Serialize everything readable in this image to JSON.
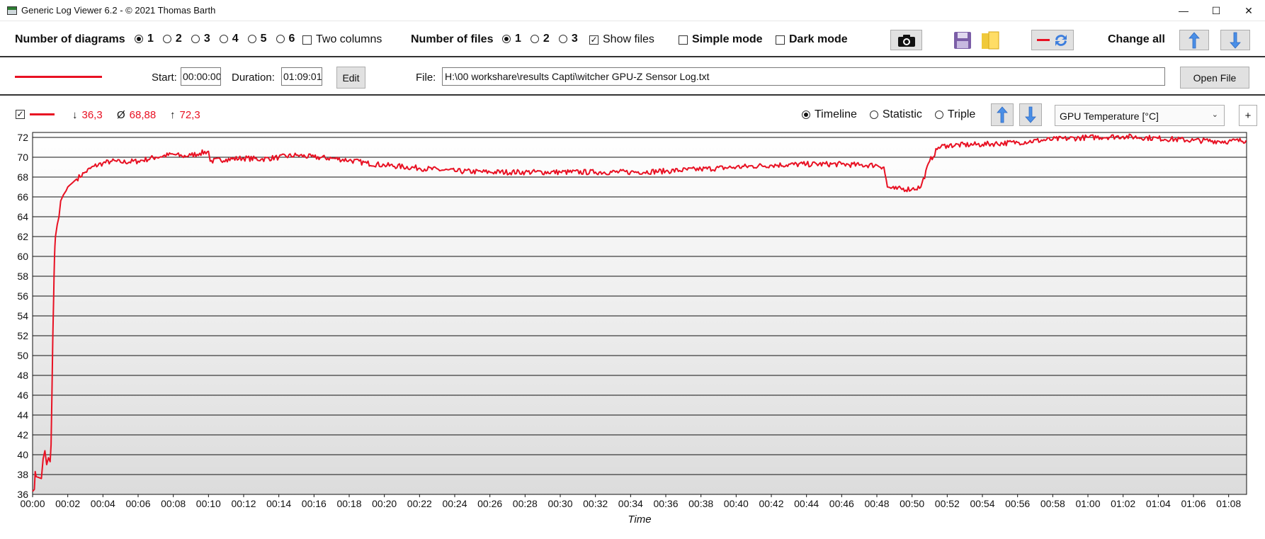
{
  "window": {
    "title": "Generic Log Viewer 6.2 - © 2021 Thomas Barth",
    "minimize": "—",
    "maximize": "☐",
    "close": "✕"
  },
  "toolbar": {
    "diagrams_label": "Number of diagrams",
    "diagram_options": [
      "1",
      "2",
      "3",
      "4",
      "5",
      "6"
    ],
    "diagram_selected": "1",
    "two_columns_label": "Two columns",
    "two_columns_checked": false,
    "files_label": "Number of files",
    "file_options": [
      "1",
      "2",
      "3"
    ],
    "file_selected": "1",
    "show_files_label": "Show files",
    "show_files_checked": true,
    "simple_mode_label": "Simple mode",
    "simple_mode_checked": false,
    "dark_mode_label": "Dark mode",
    "dark_mode_checked": false,
    "change_all_label": "Change all"
  },
  "filerow": {
    "line_color": "#e81123",
    "start_label": "Start:",
    "start_value": "00:00:00",
    "duration_label": "Duration:",
    "duration_value": "01:09:01",
    "edit_label": "Edit",
    "file_label": "File:",
    "file_path": "H:\\00 workshare\\results Capti\\witcher GPU-Z Sensor Log.txt",
    "open_file_label": "Open File"
  },
  "diagram": {
    "visible_checked": true,
    "min_symbol": "↓",
    "min_value": "36,3",
    "avg_symbol": "Ø",
    "avg_value": "68,88",
    "max_symbol": "↑",
    "max_value": "72,3",
    "view_options": [
      "Timeline",
      "Statistic",
      "Triple"
    ],
    "view_selected": "Timeline",
    "metric_selected": "GPU Temperature [°C]",
    "add_label": "+"
  },
  "chart_data": {
    "type": "line",
    "title": "",
    "xlabel": "Time",
    "ylabel": "",
    "ylim": [
      36,
      72.5
    ],
    "xlim_minutes": [
      0,
      69.02
    ],
    "y_ticks": [
      "36",
      "38",
      "40",
      "42",
      "44",
      "46",
      "48",
      "50",
      "52",
      "54",
      "56",
      "58",
      "60",
      "62",
      "64",
      "66",
      "68",
      "70",
      "72"
    ],
    "x_ticks": [
      "00:00",
      "00:02",
      "00:04",
      "00:06",
      "00:08",
      "00:10",
      "00:12",
      "00:14",
      "00:16",
      "00:18",
      "00:20",
      "00:22",
      "00:24",
      "00:26",
      "00:28",
      "00:30",
      "00:32",
      "00:34",
      "00:36",
      "00:38",
      "00:40",
      "00:42",
      "00:44",
      "00:46",
      "00:48",
      "00:50",
      "00:52",
      "00:54",
      "00:56",
      "00:58",
      "01:00",
      "01:02",
      "01:04",
      "01:06",
      "01:08"
    ],
    "grid": true,
    "series": [
      {
        "color": "#e81123",
        "x_minutes": [
          0,
          0.1,
          0.15,
          0.2,
          0.5,
          0.6,
          0.7,
          0.8,
          0.9,
          1.0,
          1.05,
          1.1,
          1.15,
          1.2,
          1.22,
          1.25,
          1.27,
          1.3,
          1.4,
          1.5,
          1.6,
          1.75,
          1.9,
          2.0,
          2.5,
          3.0,
          3.5,
          4.0,
          4.5,
          5,
          6,
          7,
          8,
          8.5,
          9,
          9.5,
          10,
          10.1,
          11,
          12,
          13,
          14,
          15,
          16,
          17,
          18,
          19,
          20,
          22,
          24,
          26,
          28,
          30,
          32,
          34,
          36,
          38,
          40,
          42,
          44,
          46,
          47,
          48,
          48.4,
          48.6,
          49,
          50,
          50.5,
          51,
          51.5,
          52,
          54,
          56,
          58,
          60,
          62,
          64,
          66,
          68,
          69
        ],
        "values": [
          36.3,
          36.5,
          38.3,
          37.8,
          37.6,
          39.6,
          40.4,
          39.0,
          39.7,
          39.3,
          41.0,
          46.0,
          52.0,
          56.0,
          58.0,
          60.0,
          61.0,
          62.0,
          63.2,
          64.0,
          65.6,
          66.2,
          66.6,
          67.0,
          67.8,
          68.5,
          69.1,
          69.4,
          69.6,
          69.5,
          69.6,
          70.0,
          70.3,
          70.1,
          70.2,
          70.4,
          70.6,
          69.6,
          69.8,
          69.9,
          69.8,
          70.0,
          70.2,
          70.0,
          69.9,
          69.7,
          69.4,
          69.2,
          68.9,
          68.6,
          68.5,
          68.5,
          68.5,
          68.5,
          68.5,
          68.6,
          68.8,
          69.0,
          69.2,
          69.3,
          69.3,
          69.2,
          69.2,
          69.0,
          67.0,
          66.8,
          66.8,
          67.0,
          69.6,
          71.0,
          71.2,
          71.3,
          71.5,
          71.8,
          72.0,
          72.1,
          71.9,
          71.7,
          71.6,
          71.7
        ]
      }
    ]
  }
}
